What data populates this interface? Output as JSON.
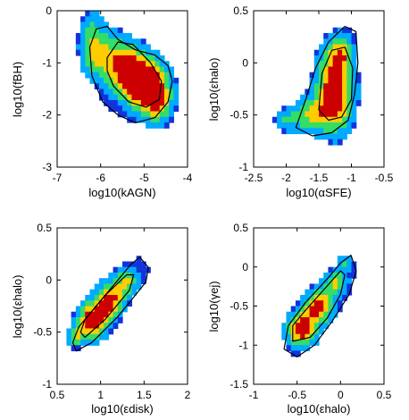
{
  "chart_data": [
    {
      "type": "heatmap",
      "xlabel": "log10(kAGN)",
      "ylabel": "log10(fBH)",
      "xlim": [
        -7,
        -4
      ],
      "ylim": [
        -3,
        0
      ],
      "xticks": [
        "-7",
        "-6",
        "-5",
        "-4"
      ],
      "yticks": [
        "-3",
        "-2",
        "-1",
        "0"
      ],
      "density_peak": {
        "x": -5.1,
        "y": -1.3
      },
      "blobs": [
        {
          "x": -5.6,
          "y": -1.0,
          "sx": 0.5,
          "sy": 0.35,
          "w": 0.7,
          "rot": -0.6
        },
        {
          "x": -5.0,
          "y": -1.4,
          "sx": 0.4,
          "sy": 0.35,
          "w": 1.0,
          "rot": -0.5
        },
        {
          "x": -6.2,
          "y": -0.6,
          "sx": 0.2,
          "sy": 0.45,
          "w": 0.4,
          "rot": 0
        },
        {
          "x": -4.7,
          "y": -1.8,
          "sx": 0.25,
          "sy": 0.3,
          "w": 0.45,
          "rot": 0
        }
      ],
      "contour_outer": [
        [
          -6.25,
          -0.7
        ],
        [
          -6.1,
          -0.35
        ],
        [
          -5.85,
          -0.3
        ],
        [
          -5.6,
          -0.55
        ],
        [
          -5.2,
          -0.75
        ],
        [
          -4.75,
          -0.85
        ],
        [
          -4.45,
          -1.05
        ],
        [
          -4.35,
          -1.35
        ],
        [
          -4.45,
          -1.75
        ],
        [
          -4.75,
          -2.05
        ],
        [
          -5.2,
          -2.15
        ],
        [
          -5.6,
          -2.0
        ],
        [
          -5.95,
          -1.75
        ],
        [
          -6.2,
          -1.25
        ]
      ],
      "contour_inner": [
        [
          -5.85,
          -0.9
        ],
        [
          -5.6,
          -0.6
        ],
        [
          -5.25,
          -0.65
        ],
        [
          -4.85,
          -1.0
        ],
        [
          -4.6,
          -1.35
        ],
        [
          -4.65,
          -1.7
        ],
        [
          -4.95,
          -1.85
        ],
        [
          -5.35,
          -1.75
        ],
        [
          -5.7,
          -1.45
        ],
        [
          -5.85,
          -1.15
        ]
      ]
    },
    {
      "type": "heatmap",
      "xlabel": "log10(αSFE)",
      "ylabel": "log10(εhalo)",
      "xlim": [
        -2.5,
        -0.5
      ],
      "ylim": [
        -1,
        0.5
      ],
      "xticks": [
        "-2.5",
        "-2",
        "-1.5",
        "-1",
        "-0.5"
      ],
      "yticks": [
        "-1",
        "-0.5",
        "0",
        "0.5"
      ],
      "density_peak": {
        "x": -1.25,
        "y": -0.2
      },
      "blobs": [
        {
          "x": -1.25,
          "y": -0.25,
          "sx": 0.2,
          "sy": 0.28,
          "w": 1.0,
          "rot": 0.1
        },
        {
          "x": -1.6,
          "y": -0.5,
          "sx": 0.22,
          "sy": 0.12,
          "w": 0.55,
          "rot": 0
        },
        {
          "x": -2.0,
          "y": -0.55,
          "sx": 0.15,
          "sy": 0.08,
          "w": 0.35,
          "rot": 0
        },
        {
          "x": -1.15,
          "y": 0.1,
          "sx": 0.12,
          "sy": 0.12,
          "w": 0.45,
          "rot": 0
        }
      ],
      "contour_outer": [
        [
          -1.85,
          -0.62
        ],
        [
          -1.7,
          -0.35
        ],
        [
          -1.55,
          -0.05
        ],
        [
          -1.35,
          0.2
        ],
        [
          -1.1,
          0.35
        ],
        [
          -0.93,
          0.3
        ],
        [
          -0.9,
          0.0
        ],
        [
          -0.95,
          -0.3
        ],
        [
          -1.05,
          -0.55
        ],
        [
          -1.3,
          -0.67
        ],
        [
          -1.6,
          -0.7
        ]
      ],
      "contour_inner": [
        [
          -1.5,
          -0.45
        ],
        [
          -1.45,
          -0.1
        ],
        [
          -1.3,
          0.12
        ],
        [
          -1.1,
          0.15
        ],
        [
          -0.98,
          -0.05
        ],
        [
          -1.0,
          -0.35
        ],
        [
          -1.15,
          -0.52
        ],
        [
          -1.35,
          -0.55
        ]
      ]
    },
    {
      "type": "heatmap",
      "xlabel": "log10(εdisk)",
      "ylabel": "log10(εhalo)",
      "xlim": [
        0.5,
        2
      ],
      "ylim": [
        -1,
        0.5
      ],
      "xticks": [
        "0.5",
        "1",
        "1.5",
        "2"
      ],
      "yticks": [
        "-1",
        "-0.5",
        "0",
        "0.5"
      ],
      "density_peak": {
        "x": 0.95,
        "y": -0.35
      },
      "blobs": [
        {
          "x": 0.9,
          "y": -0.4,
          "sx": 0.12,
          "sy": 0.12,
          "w": 1.0,
          "rot": 0
        },
        {
          "x": 1.1,
          "y": -0.2,
          "sx": 0.12,
          "sy": 0.12,
          "w": 0.9,
          "rot": 0
        },
        {
          "x": 1.3,
          "y": 0.0,
          "sx": 0.1,
          "sy": 0.1,
          "w": 0.6,
          "rot": 0
        },
        {
          "x": 0.7,
          "y": -0.55,
          "sx": 0.08,
          "sy": 0.07,
          "w": 0.5,
          "rot": 0
        }
      ],
      "contour_outer": [
        [
          0.68,
          -0.6
        ],
        [
          0.75,
          -0.45
        ],
        [
          1.05,
          -0.15
        ],
        [
          1.35,
          0.15
        ],
        [
          1.45,
          0.22
        ],
        [
          1.55,
          0.12
        ],
        [
          1.52,
          -0.02
        ],
        [
          1.2,
          -0.35
        ],
        [
          0.9,
          -0.6
        ],
        [
          0.72,
          -0.68
        ]
      ],
      "contour_inner": [
        [
          0.77,
          -0.5
        ],
        [
          0.82,
          -0.38
        ],
        [
          1.05,
          -0.15
        ],
        [
          1.3,
          0.05
        ],
        [
          1.38,
          0.05
        ],
        [
          1.33,
          -0.1
        ],
        [
          1.05,
          -0.38
        ],
        [
          0.82,
          -0.55
        ]
      ]
    },
    {
      "type": "heatmap",
      "xlabel": "log10(εhalo)",
      "ylabel": "log10(γej)",
      "xlim": [
        -1,
        0.5
      ],
      "ylim": [
        -1.5,
        0.5
      ],
      "xticks": [
        "-1",
        "-0.5",
        "0",
        "0.5"
      ],
      "yticks": [
        "-1.5",
        "-1",
        "-0.5",
        "0",
        "0.5"
      ],
      "density_peak": {
        "x": -0.4,
        "y": -0.7
      },
      "blobs": [
        {
          "x": -0.45,
          "y": -0.8,
          "sx": 0.12,
          "sy": 0.15,
          "w": 1.0,
          "rot": 0
        },
        {
          "x": -0.25,
          "y": -0.5,
          "sx": 0.12,
          "sy": 0.15,
          "w": 0.9,
          "rot": 0
        },
        {
          "x": -0.05,
          "y": -0.2,
          "sx": 0.1,
          "sy": 0.12,
          "w": 0.6,
          "rot": 0
        },
        {
          "x": 0.05,
          "y": 0.05,
          "sx": 0.06,
          "sy": 0.08,
          "w": 0.4,
          "rot": 0
        }
      ],
      "contour_outer": [
        [
          -0.65,
          -1.05
        ],
        [
          -0.6,
          -0.75
        ],
        [
          -0.4,
          -0.45
        ],
        [
          -0.15,
          -0.15
        ],
        [
          0.0,
          0.05
        ],
        [
          0.12,
          0.15
        ],
        [
          0.18,
          -0.05
        ],
        [
          0.1,
          -0.35
        ],
        [
          -0.1,
          -0.7
        ],
        [
          -0.3,
          -1.0
        ],
        [
          -0.5,
          -1.15
        ]
      ],
      "contour_inner": [
        [
          -0.55,
          -0.95
        ],
        [
          -0.55,
          -0.75
        ],
        [
          -0.4,
          -0.55
        ],
        [
          -0.2,
          -0.3
        ],
        [
          0.0,
          -0.05
        ],
        [
          0.05,
          -0.1
        ],
        [
          0.0,
          -0.35
        ],
        [
          -0.15,
          -0.65
        ],
        [
          -0.35,
          -0.9
        ]
      ]
    }
  ],
  "colors": {
    "hot": "#cc0000",
    "warm": "#ffcc00",
    "mid": "#33dd66",
    "cool": "#00aaff",
    "cold": "#1133dd",
    "contour": "#000000"
  }
}
